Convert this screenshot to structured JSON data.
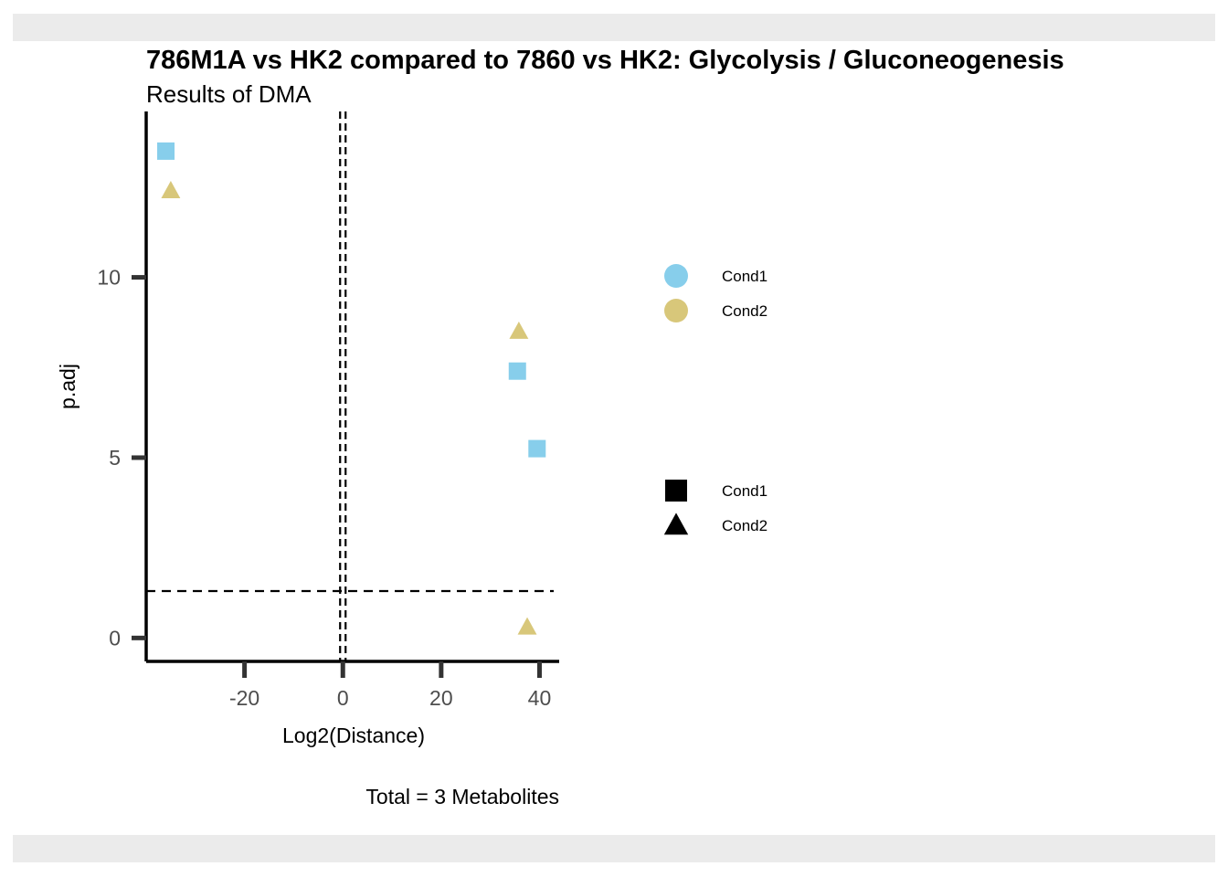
{
  "chart_data": {
    "type": "scatter",
    "title": "786M1A vs HK2 compared to 7860 vs HK2: Glycolysis / Gluconeogenesis",
    "subtitle": "Results of DMA",
    "xlabel": "Log2(Distance)",
    "ylabel": "p.adj",
    "caption": "Total = 3 Metabolites",
    "xlim": [
      -40,
      44
    ],
    "ylim": [
      -0.65,
      14.6
    ],
    "x_ticks": [
      -20,
      0,
      20,
      40
    ],
    "y_ticks": [
      0,
      5,
      10
    ],
    "x_tick_labels": [
      "-20",
      "0",
      "20",
      "40"
    ],
    "y_tick_labels": [
      "0",
      "5",
      "10"
    ],
    "reference_lines": {
      "vertical": 0,
      "horizontal": 1.3
    },
    "grid": false,
    "series": [
      {
        "name": "Cond1",
        "color": "#87ceeb",
        "shape": "square",
        "points": [
          {
            "x": -36,
            "y": 13.5
          },
          {
            "x": 35.5,
            "y": 7.4
          },
          {
            "x": 39.5,
            "y": 5.25
          }
        ]
      },
      {
        "name": "Cond2",
        "color": "#d8c77a",
        "shape": "triangle",
        "points": [
          {
            "x": -35,
            "y": 12.4
          },
          {
            "x": 35.8,
            "y": 8.5
          },
          {
            "x": 37.5,
            "y": 0.3
          }
        ]
      }
    ],
    "legend": {
      "placement": "right",
      "color_entries": [
        {
          "label": "Cond1",
          "color": "#87ceeb"
        },
        {
          "label": "Cond2",
          "color": "#d8c77a"
        }
      ],
      "shape_entries": [
        {
          "label": "Cond1",
          "shape": "square"
        },
        {
          "label": "Cond2",
          "shape": "triangle"
        }
      ]
    }
  }
}
